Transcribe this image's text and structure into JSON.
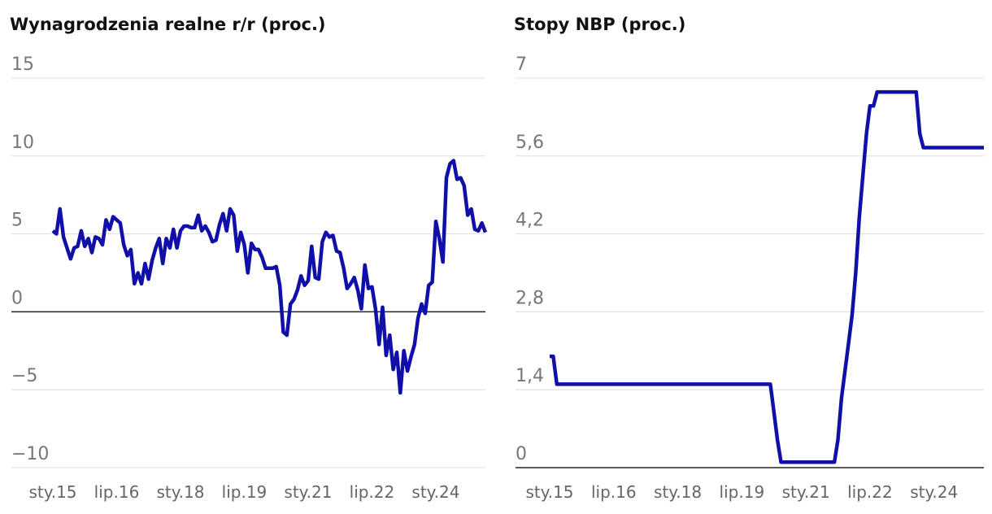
{
  "chart_data": [
    {
      "type": "line",
      "title": "Wynagrodzenia realne r/r (proc.)",
      "categories": [
        "sty.15",
        null,
        null,
        null,
        null,
        null,
        null,
        null,
        null,
        null,
        null,
        null,
        null,
        null,
        null,
        null,
        null,
        null,
        "lip.16",
        null,
        null,
        null,
        null,
        null,
        null,
        null,
        null,
        null,
        null,
        null,
        null,
        null,
        null,
        null,
        null,
        null,
        "sty.18",
        null,
        null,
        null,
        null,
        null,
        null,
        null,
        null,
        null,
        null,
        null,
        null,
        null,
        null,
        null,
        null,
        null,
        "lip.19",
        null,
        null,
        null,
        null,
        null,
        null,
        null,
        null,
        null,
        null,
        null,
        null,
        null,
        null,
        null,
        null,
        null,
        "sty.21",
        null,
        null,
        null,
        null,
        null,
        null,
        null,
        null,
        null,
        null,
        null,
        null,
        null,
        null,
        null,
        null,
        null,
        "lip.22",
        null,
        null,
        null,
        null,
        null,
        null,
        null,
        null,
        null,
        null,
        null,
        null,
        null,
        null,
        null,
        null,
        null,
        "sty.24",
        null,
        null,
        null,
        null,
        null,
        null,
        null,
        null,
        null,
        null,
        null,
        null,
        null,
        null
      ],
      "series": [
        {
          "color": "#1010a8",
          "values": [
            5.2,
            5.0,
            6.6,
            4.8,
            4.1,
            3.4,
            4.1,
            4.2,
            5.2,
            4.2,
            4.7,
            3.8,
            4.8,
            4.7,
            4.3,
            5.9,
            5.3,
            6.1,
            5.9,
            5.7,
            4.3,
            3.6,
            4.0,
            1.8,
            2.5,
            1.8,
            3.1,
            2.1,
            3.3,
            4.1,
            4.7,
            3.1,
            4.7,
            4.1,
            5.3,
            4.1,
            5.2,
            5.5,
            5.5,
            5.4,
            5.4,
            6.2,
            5.2,
            5.5,
            5.1,
            4.5,
            4.6,
            5.6,
            6.3,
            5.2,
            6.6,
            6.2,
            3.9,
            5.1,
            4.3,
            2.5,
            4.4,
            4.0,
            4.0,
            3.5,
            2.8,
            2.8,
            2.8,
            2.9,
            1.7,
            -1.3,
            -1.5,
            0.5,
            0.8,
            1.4,
            2.3,
            1.7,
            2.0,
            4.2,
            2.2,
            2.1,
            4.5,
            5.1,
            4.8,
            4.9,
            3.9,
            3.8,
            2.8,
            1.5,
            1.8,
            2.2,
            1.4,
            0.2,
            3.0,
            1.5,
            1.6,
            0.2,
            -2.1,
            0.3,
            -2.8,
            -1.5,
            -3.7,
            -2.6,
            -5.2,
            -2.5,
            -3.8,
            -2.9,
            -2.1,
            -0.4,
            0.5,
            -0.1,
            1.7,
            1.9,
            5.8,
            4.7,
            3.2,
            8.6,
            9.5,
            9.7,
            8.5,
            8.6,
            8.1,
            6.2,
            6.6,
            5.3,
            5.2,
            5.7,
            5.1
          ]
        }
      ],
      "ylim": [
        -10,
        15
      ],
      "yticks": [
        {
          "value": -10,
          "label": "−10"
        },
        {
          "value": -5,
          "label": "−5"
        },
        0,
        5,
        10,
        15
      ],
      "grid": true
    },
    {
      "type": "line",
      "title": "Stopy NBP (proc.)",
      "categories": [
        "sty.15",
        null,
        null,
        null,
        null,
        null,
        null,
        null,
        null,
        null,
        null,
        null,
        null,
        null,
        null,
        null,
        null,
        null,
        "lip.16",
        null,
        null,
        null,
        null,
        null,
        null,
        null,
        null,
        null,
        null,
        null,
        null,
        null,
        null,
        null,
        null,
        null,
        "sty.18",
        null,
        null,
        null,
        null,
        null,
        null,
        null,
        null,
        null,
        null,
        null,
        null,
        null,
        null,
        null,
        null,
        null,
        "lip.19",
        null,
        null,
        null,
        null,
        null,
        null,
        null,
        null,
        null,
        null,
        null,
        null,
        null,
        null,
        null,
        null,
        null,
        "sty.21",
        null,
        null,
        null,
        null,
        null,
        null,
        null,
        null,
        null,
        null,
        null,
        null,
        null,
        null,
        null,
        null,
        null,
        "lip.22",
        null,
        null,
        null,
        null,
        null,
        null,
        null,
        null,
        null,
        null,
        null,
        null,
        null,
        null,
        null,
        null,
        null,
        "sty.24",
        null,
        null,
        null,
        null,
        null,
        null,
        null,
        null,
        null,
        null,
        null,
        null,
        null,
        null
      ],
      "series": [
        {
          "color": "#1010a8",
          "values": [
            2,
            2,
            1.5,
            1.5,
            1.5,
            1.5,
            1.5,
            1.5,
            1.5,
            1.5,
            1.5,
            1.5,
            1.5,
            1.5,
            1.5,
            1.5,
            1.5,
            1.5,
            1.5,
            1.5,
            1.5,
            1.5,
            1.5,
            1.5,
            1.5,
            1.5,
            1.5,
            1.5,
            1.5,
            1.5,
            1.5,
            1.5,
            1.5,
            1.5,
            1.5,
            1.5,
            1.5,
            1.5,
            1.5,
            1.5,
            1.5,
            1.5,
            1.5,
            1.5,
            1.5,
            1.5,
            1.5,
            1.5,
            1.5,
            1.5,
            1.5,
            1.5,
            1.5,
            1.5,
            1.5,
            1.5,
            1.5,
            1.5,
            1.5,
            1.5,
            1.5,
            1.5,
            1.5,
            1.0,
            0.5,
            0.1,
            0.1,
            0.1,
            0.1,
            0.1,
            0.1,
            0.1,
            0.1,
            0.1,
            0.1,
            0.1,
            0.1,
            0.1,
            0.1,
            0.1,
            0.1,
            0.5,
            1.25,
            1.75,
            2.25,
            2.75,
            3.5,
            4.5,
            5.25,
            6.0,
            6.5,
            6.5,
            6.75,
            6.75,
            6.75,
            6.75,
            6.75,
            6.75,
            6.75,
            6.75,
            6.75,
            6.75,
            6.75,
            6.75,
            6.0,
            5.75,
            5.75,
            5.75,
            5.75,
            5.75,
            5.75,
            5.75,
            5.75,
            5.75,
            5.75,
            5.75,
            5.75,
            5.75,
            5.75,
            5.75,
            5.75,
            5.75,
            5.75
          ]
        }
      ],
      "ylim": [
        0,
        7
      ],
      "yticks": [
        0,
        {
          "value": 1.4,
          "label": "1,4"
        },
        {
          "value": 2.8,
          "label": "2,8"
        },
        {
          "value": 4.2,
          "label": "4,2"
        },
        {
          "value": 5.6,
          "label": "5,6"
        },
        7
      ],
      "grid": true
    }
  ]
}
